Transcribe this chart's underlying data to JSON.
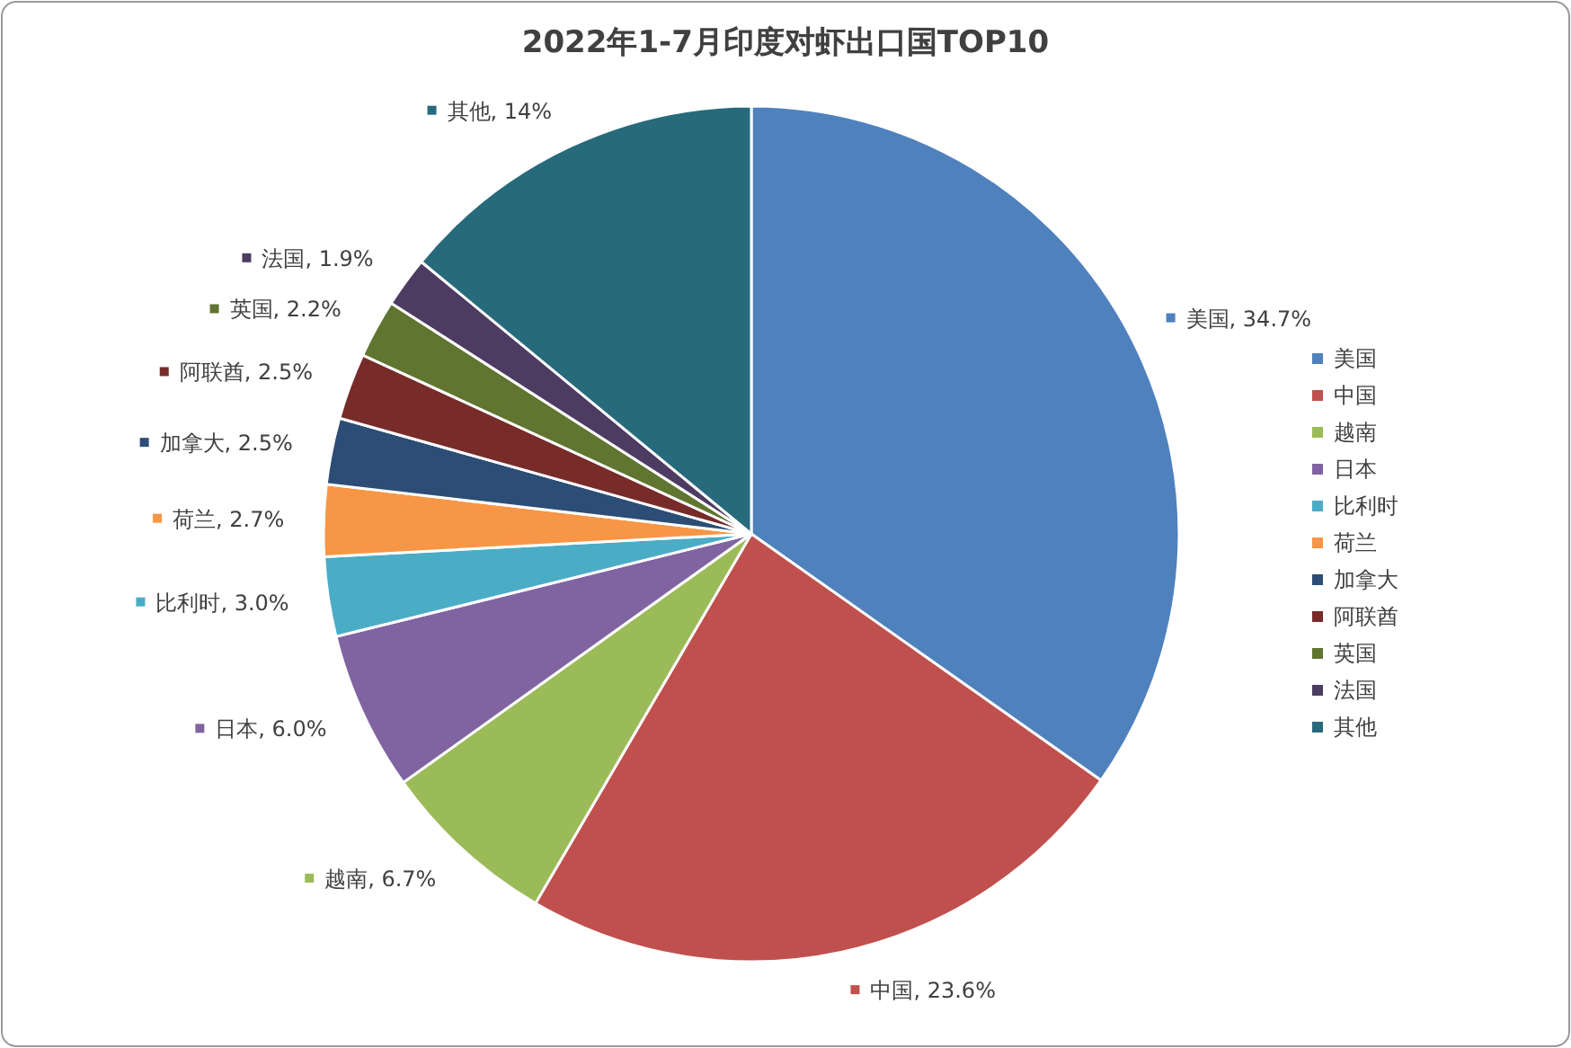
{
  "chart_data": {
    "type": "pie",
    "title": "2022年1-7月印度对虾出口国TOP10",
    "categories": [
      "美国",
      "中国",
      "越南",
      "日本",
      "比利时",
      "荷兰",
      "加拿大",
      "阿联酋",
      "英国",
      "法国",
      "其他"
    ],
    "values": [
      34.7,
      23.6,
      6.7,
      6.0,
      3.0,
      2.7,
      2.5,
      2.5,
      2.2,
      1.9,
      14
    ],
    "value_labels": [
      "美国, 34.7%",
      "中国, 23.6%",
      "越南, 6.7%",
      "日本, 6.0%",
      "比利时, 3.0%",
      "荷兰, 2.7%",
      "加拿大, 2.5%",
      "阿联酋, 2.5%",
      "英国, 2.2%",
      "法国, 1.9%",
      "其他, 14%"
    ],
    "colors": [
      "#4f81bd",
      "#c0504d",
      "#9bbb59",
      "#8064a2",
      "#4bacc6",
      "#f79646",
      "#2c4d75",
      "#772c2a",
      "#5f7530",
      "#4d3b62",
      "#276a7c"
    ],
    "legend": "right"
  }
}
